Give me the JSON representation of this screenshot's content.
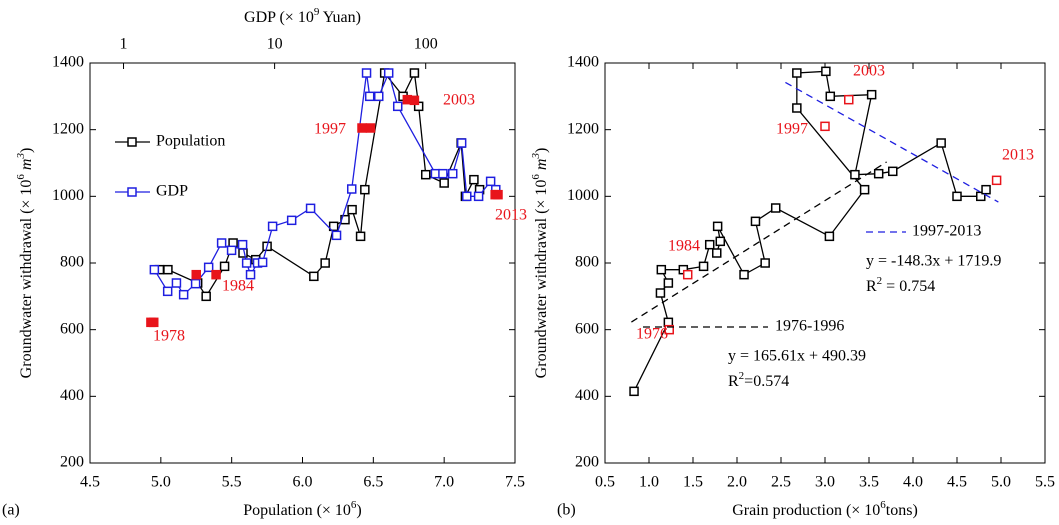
{
  "chart_data": [
    {
      "type": "line",
      "panel_label": "(a)",
      "legend": "upper left",
      "xlabel": [
        {
          "text": "Population (× 10"
        },
        {
          "text": "6",
          "sup": true
        },
        {
          "text": ")"
        }
      ],
      "x2label": [
        {
          "text": "GDP (× 10"
        },
        {
          "text": "9",
          "sup": true
        },
        {
          "text": " Yuan)"
        }
      ],
      "ylabel": [
        {
          "text": "Groundwater withdrawal (× 10"
        },
        {
          "text": "6",
          "sup": true
        },
        {
          "text": " m",
          "italic": true
        },
        {
          "text": "3",
          "sup": true,
          "italic": true
        },
        {
          "text": ")"
        }
      ],
      "xlim": [
        4.5,
        7.5
      ],
      "xticks": [
        4.5,
        {
          "value": 5,
          "label": "5.0"
        },
        5.5,
        {
          "value": 6,
          "label": "6.0"
        },
        6.5,
        {
          "value": 7,
          "label": "7.0"
        },
        7.5
      ],
      "x2lim": [
        0.6,
        390
      ],
      "x2scale": "log",
      "x2ticks": [
        1,
        10,
        100
      ],
      "ylim": [
        200,
        1400
      ],
      "yticks": [
        200,
        400,
        600,
        800,
        1000,
        1200,
        1400
      ],
      "series": [
        {
          "name": "Population",
          "color": "#000000",
          "marker": "open-square",
          "x": [
            4.99,
            5.05,
            5.26,
            5.32,
            5.45,
            5.51,
            5.58,
            5.67,
            5.75,
            6.08,
            6.16,
            6.22,
            6.3,
            6.35,
            6.41,
            6.44,
            6.58,
            6.71,
            6.79,
            6.82,
            6.87,
            7.0,
            7.12,
            7.15,
            7.21,
            7.25
          ],
          "y": [
            780,
            780,
            740,
            700,
            790,
            860,
            830,
            810,
            850,
            760,
            800,
            910,
            930,
            960,
            880,
            1020,
            1370,
            1300,
            1370,
            1270,
            1065,
            1040,
            1160,
            1000,
            1050,
            1020
          ]
        },
        {
          "name": "GDP",
          "color": "#1f1fe0",
          "marker": "open-square",
          "axis": "x2",
          "x": [
            1.6,
            1.96,
            2.24,
            2.5,
            3.0,
            3.66,
            4.46,
            5.19,
            6.14,
            6.53,
            6.93,
            7.71,
            8.33,
            9.7,
            12.97,
            17.3,
            25.7,
            32.4,
            40.6,
            42.6,
            48.9,
            56.9,
            65.3,
            116,
            130,
            151,
            173,
            187,
            224,
            269,
            291
          ],
          "y": [
            780,
            715,
            740,
            705,
            738,
            787,
            860,
            838,
            855,
            800,
            765,
            800,
            802,
            910,
            928,
            964,
            883,
            1022,
            1370,
            1300,
            1300,
            1370,
            1270,
            1068,
            1068,
            1068,
            1160,
            1000,
            1000,
            1045,
            1020
          ]
        },
        {
          "color": "#e8141b",
          "marker": "filled-square",
          "line": false,
          "x": [
            4.93,
            4.95,
            5.25,
            5.39,
            6.42,
            6.48,
            6.74,
            6.79,
            7.36,
            7.38
          ],
          "y": [
            622,
            622,
            765,
            765,
            1205,
            1205,
            1290,
            1288,
            1005,
            1005
          ]
        }
      ],
      "annotations": [
        {
          "text": "1978",
          "color": "#e8141b"
        },
        {
          "text": "1984",
          "color": "#e8141b"
        },
        {
          "text": "1997",
          "color": "#e8141b"
        },
        {
          "text": "2003",
          "color": "#e8141b"
        },
        {
          "text": "2013",
          "color": "#e8141b"
        }
      ]
    },
    {
      "type": "line",
      "panel_label": "(b)",
      "xlabel": [
        {
          "text": "Grain production (× 10"
        },
        {
          "text": "6",
          "sup": true
        },
        {
          "text": "tons)"
        }
      ],
      "ylabel": [
        {
          "text": "Groundwater withdrawal (× 10"
        },
        {
          "text": "6",
          "sup": true
        },
        {
          "text": " m",
          "italic": true
        },
        {
          "text": "3",
          "sup": true,
          "italic": true
        },
        {
          "text": ")"
        }
      ],
      "xlim": [
        0.5,
        5.5
      ],
      "xticks": [
        0.5,
        {
          "value": 1,
          "label": "1.0"
        },
        1.5,
        {
          "value": 2,
          "label": "2.0"
        },
        2.5,
        {
          "value": 3,
          "label": "3.0"
        },
        3.5,
        {
          "value": 4,
          "label": "4.0"
        },
        4.5,
        {
          "value": 5,
          "label": "5.0"
        },
        5.5
      ],
      "ylim": [
        200,
        1400
      ],
      "yticks": [
        200,
        400,
        600,
        800,
        1000,
        1200,
        1400
      ],
      "series": [
        {
          "color": "#000000",
          "marker": "open-square",
          "x": [
            0.83,
            1.22,
            1.13,
            1.22,
            1.14,
            1.39,
            1.62,
            1.69,
            1.77,
            1.81,
            1.78,
            2.08,
            2.32,
            2.21,
            2.44,
            3.05,
            3.45,
            2.68,
            2.68,
            3.01,
            3.06,
            3.53,
            3.34,
            3.61,
            3.77,
            4.32,
            4.5,
            4.77,
            4.83
          ],
          "y": [
            415,
            622,
            710,
            740,
            780,
            780,
            790,
            855,
            830,
            865,
            910,
            765,
            800,
            925,
            965,
            880,
            1020,
            1265,
            1370,
            1375,
            1300,
            1305,
            1065,
            1068,
            1075,
            1160,
            1000,
            1000,
            1020
          ]
        },
        {
          "color": "#e8141b",
          "marker": "open-square",
          "line": false,
          "x": [
            1.23,
            1.44,
            3.0,
            3.27,
            4.95
          ],
          "y": [
            600,
            765,
            1210,
            1290,
            1048
          ]
        }
      ],
      "fits": [
        {
          "name": "1997-2013",
          "color": "#1f1fe0",
          "slope": -148.3,
          "intercept": 1719.9,
          "x_range": [
            2.55,
            4.97
          ],
          "equation": "y = -148.3x + 1719.9",
          "r2": [
            {
              "text": "R"
            },
            {
              "text": "2",
              "sup": true
            },
            {
              "text": " = 0.754"
            }
          ]
        },
        {
          "name": "1976-1996",
          "color": "#000000",
          "slope": 165.61,
          "intercept": 490.39,
          "x_range": [
            0.8,
            3.7
          ],
          "equation": "y = 165.61x + 490.39",
          "r2": [
            {
              "text": "R"
            },
            {
              "text": "2",
              "sup": true
            },
            {
              "text": "=0.574"
            }
          ]
        }
      ],
      "annotations": [
        {
          "text": "1976",
          "color": "#e8141b"
        },
        {
          "text": "1984",
          "color": "#e8141b"
        },
        {
          "text": "1997",
          "color": "#e8141b"
        },
        {
          "text": "2003",
          "color": "#e8141b"
        },
        {
          "text": "2013",
          "color": "#e8141b"
        }
      ]
    }
  ]
}
